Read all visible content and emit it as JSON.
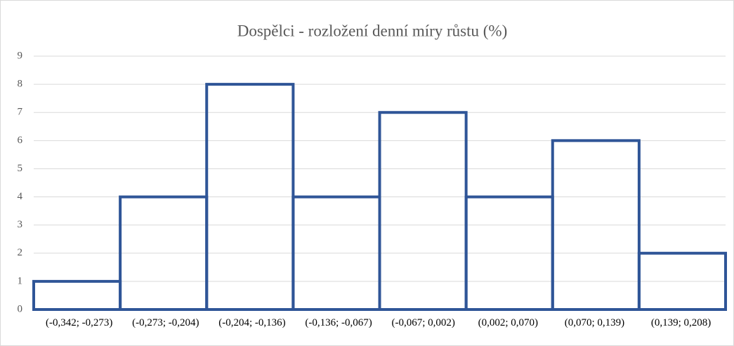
{
  "chart_data": {
    "type": "bar",
    "title": "Dospělci - rozložení denní míry růstu (%)",
    "categories": [
      "(-0,342; -0,273)",
      "(-0,273; -0,204)",
      "(-0,204; -0,136)",
      "(-0,136; -0,067)",
      "(-0,067; 0,002)",
      "(0,002; 0,070)",
      "(0,070; 0,139)",
      "(0,139; 0,208)"
    ],
    "values": [
      1,
      4,
      8,
      4,
      7,
      4,
      6,
      2
    ],
    "color": "#2f5597",
    "ylim": [
      0,
      9
    ],
    "yticks": [
      0,
      1,
      2,
      3,
      4,
      5,
      6,
      7,
      8,
      9
    ],
    "grid": true
  }
}
